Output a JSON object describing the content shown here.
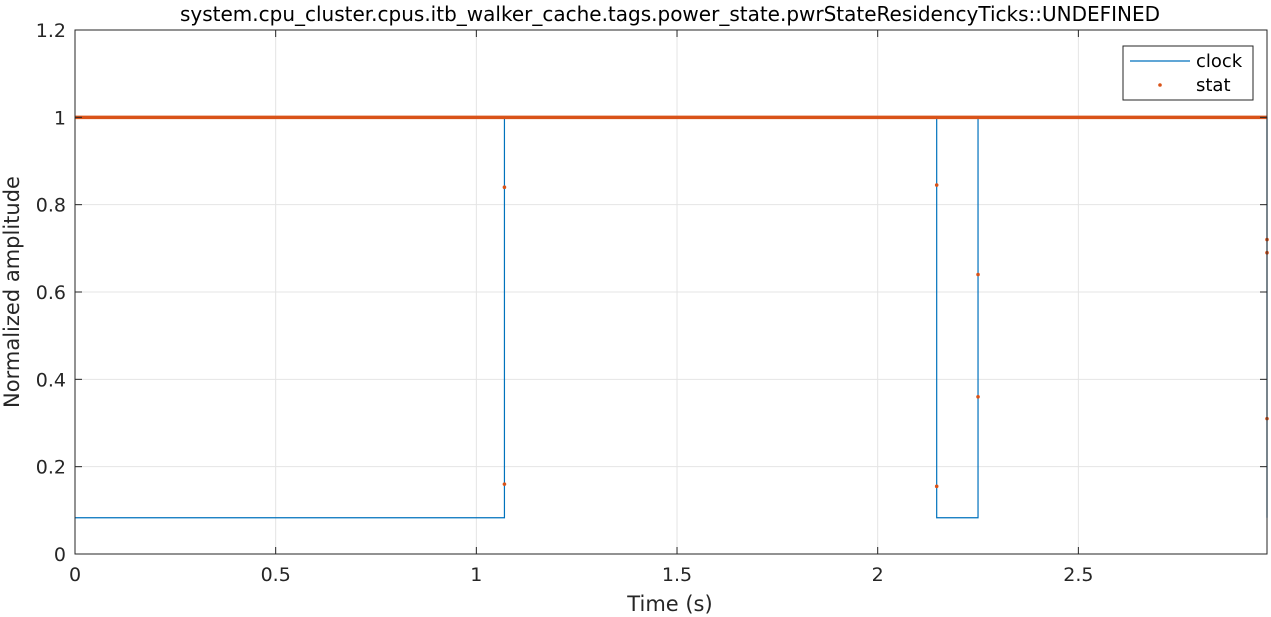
{
  "chart_data": {
    "type": "line",
    "title": "system.cpu_cluster.cpus.itb_walker_cache.tags.power_state.pwrStateResidencyTicks::UNDEFINED",
    "xlabel": "Time (s)",
    "ylabel": "Normalized amplitude",
    "xlim": [
      0,
      2.97
    ],
    "ylim": [
      0,
      1.2
    ],
    "xticks": [
      0,
      0.5,
      1,
      1.5,
      2,
      2.5
    ],
    "xtick_labels": [
      "0",
      "0.5",
      "1",
      "1.5",
      "2",
      "2.5"
    ],
    "yticks": [
      0,
      0.2,
      0.4,
      0.6,
      0.8,
      1,
      1.2
    ],
    "ytick_labels": [
      "0",
      "0.2",
      "0.4",
      "0.6",
      "0.8",
      "1",
      "1.2"
    ],
    "grid": true,
    "legend_position": "top-right",
    "series": [
      {
        "name": "clock",
        "style": "step-line",
        "color": "#0072BD",
        "x": [
          0,
          1.07,
          1.07,
          2.147,
          2.147,
          2.25,
          2.25,
          2.97,
          2.97
        ],
        "y": [
          0.083,
          0.083,
          1,
          1,
          0.083,
          0.083,
          1,
          1,
          0.083
        ]
      },
      {
        "name": "stat",
        "style": "dots",
        "color": "#D95319",
        "dense_line": {
          "x_start": 0,
          "x_end": 2.97,
          "y": 1
        },
        "x": [
          1.07,
          1.07,
          2.147,
          2.147,
          2.25,
          2.25,
          2.97,
          2.97,
          2.97
        ],
        "y": [
          0.84,
          0.16,
          0.845,
          0.155,
          0.64,
          0.36,
          0.72,
          0.69,
          0.31
        ]
      }
    ]
  }
}
